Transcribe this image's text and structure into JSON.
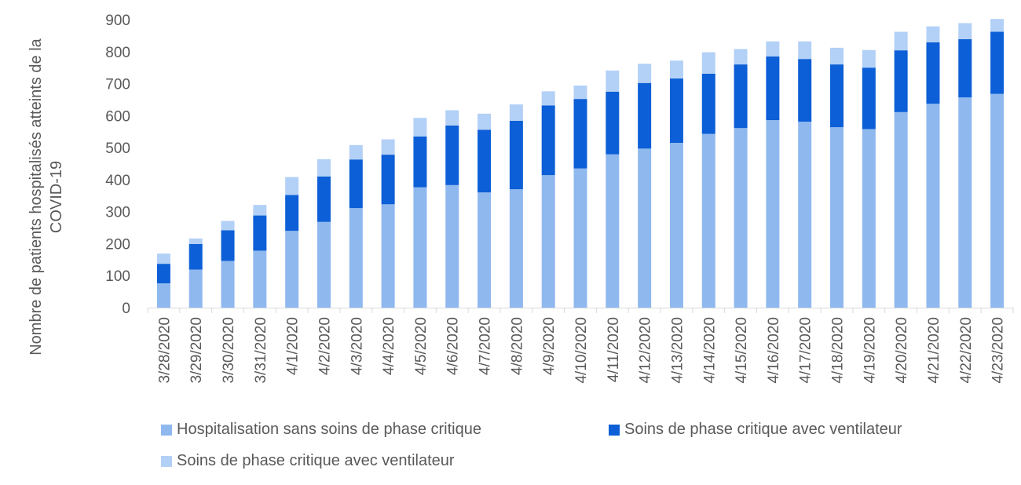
{
  "chart_data": {
    "type": "bar",
    "stacked": true,
    "ylabel": "Nombre de patients hospitalisés atteints de la COVID-19",
    "ylim": [
      0,
      900
    ],
    "yticks": [
      0,
      100,
      200,
      300,
      400,
      500,
      600,
      700,
      800,
      900
    ],
    "categories": [
      "3/28/2020",
      "3/29/2020",
      "3/30/2020",
      "3/31/2020",
      "4/1/2020",
      "4/2/2020",
      "4/3/2020",
      "4/4/2020",
      "4/5/2020",
      "4/6/2020",
      "4/7/2020",
      "4/8/2020",
      "4/9/2020",
      "4/10/2020",
      "4/11/2020",
      "4/12/2020",
      "4/13/2020",
      "4/14/2020",
      "4/15/2020",
      "4/16/2020",
      "4/17/2020",
      "4/18/2020",
      "4/19/2020",
      "4/20/2020",
      "4/21/2020",
      "4/22/2020",
      "4/23/2020"
    ],
    "series": [
      {
        "name": "Hospitalisation sans soins de phase critique",
        "color": "#8fb8ef",
        "values": [
          76,
          119,
          146,
          178,
          240,
          268,
          311,
          323,
          376,
          383,
          360,
          370,
          414,
          435,
          479,
          497,
          515,
          543,
          561,
          586,
          581,
          564,
          558,
          611,
          637,
          657,
          668
        ]
      },
      {
        "name": "Soins de phase critique avec ventilateur",
        "color": "#0c5fd6",
        "values": [
          61,
          80,
          96,
          110,
          112,
          142,
          152,
          155,
          159,
          186,
          196,
          214,
          218,
          217,
          196,
          205,
          201,
          188,
          199,
          199,
          196,
          196,
          192,
          193,
          192,
          182,
          194
        ]
      },
      {
        "name": "Soins de phase critique avec ventilateur",
        "color": "#b3d0f7",
        "values": [
          32,
          17,
          29,
          33,
          56,
          54,
          45,
          48,
          58,
          48,
          50,
          51,
          44,
          42,
          66,
          60,
          56,
          67,
          48,
          47,
          55,
          52,
          55,
          58,
          50,
          50,
          40
        ]
      }
    ],
    "legend_position": "bottom",
    "grid": false
  }
}
